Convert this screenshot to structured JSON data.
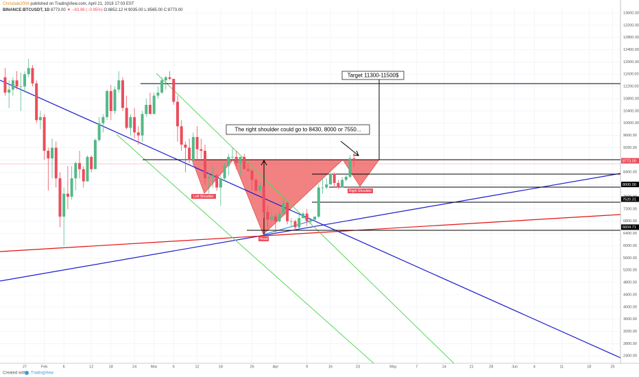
{
  "header": {
    "author": "Chrisdale2006",
    "published": "published on TradingView.com, April 21, 2018 17:03 EST",
    "symbol": "BINANCE:BTCUSDT, 1D",
    "last": "8773.00",
    "change": "▼ −83.98 (−0.95%)",
    "ohlc": "O:8852.12 H:9035.00 L:8565.00 C:8773.00"
  },
  "footer": {
    "created": "Created with",
    "brand": "TradingView"
  },
  "chart_data": {
    "type": "candlestick",
    "up_color": "#53b987",
    "down_color": "#eb4d5c",
    "grid": true,
    "x": [
      -5,
      -4,
      -3,
      -2,
      -1,
      0,
      1,
      2,
      3,
      4,
      5,
      6,
      7,
      8,
      9,
      10,
      11,
      12,
      13,
      14,
      15,
      16,
      17,
      18,
      19,
      20,
      21,
      22,
      23,
      24,
      25,
      26,
      27,
      28,
      29,
      30,
      31,
      32,
      33,
      34,
      35,
      36,
      37,
      38,
      39,
      40,
      41,
      42,
      43,
      44,
      45,
      46,
      47,
      48,
      49,
      50,
      51,
      52,
      53,
      54,
      55,
      56,
      57,
      58,
      59,
      60,
      61,
      62,
      63,
      64,
      65,
      66,
      67,
      68,
      69,
      70,
      71,
      72,
      73,
      74,
      75,
      76,
      77,
      78,
      79,
      80,
      81,
      82,
      83,
      84
    ],
    "ohlc": [
      [
        11500,
        11800,
        10900,
        11000
      ],
      [
        11000,
        11400,
        10500,
        11100
      ],
      [
        11100,
        11500,
        10900,
        11400
      ],
      [
        11400,
        11700,
        11100,
        11200
      ],
      [
        11200,
        11650,
        10400,
        11200
      ],
      [
        11200,
        11700,
        11000,
        11600
      ],
      [
        11600,
        12100,
        11500,
        11800
      ],
      [
        11800,
        11900,
        11200,
        11300
      ],
      [
        11300,
        11400,
        10000,
        10100
      ],
      [
        10100,
        10400,
        9800,
        10200
      ],
      [
        10200,
        10300,
        8800,
        9100
      ],
      [
        9100,
        9200,
        7800,
        8850
      ],
      [
        8850,
        9500,
        8200,
        9200
      ],
      [
        9200,
        9400,
        7900,
        8200
      ],
      [
        8200,
        8400,
        6600,
        6950
      ],
      [
        6950,
        7900,
        6000,
        7700
      ],
      [
        7700,
        8600,
        7200,
        7600
      ],
      [
        7600,
        8600,
        7500,
        8200
      ],
      [
        8200,
        8750,
        7800,
        8700
      ],
      [
        8700,
        9100,
        8200,
        8500
      ],
      [
        8500,
        8600,
        7900,
        8100
      ],
      [
        8100,
        8950,
        8100,
        8900
      ],
      [
        8900,
        8950,
        8400,
        8500
      ],
      [
        8500,
        9500,
        8500,
        9450
      ],
      [
        9450,
        10200,
        9400,
        10000
      ],
      [
        10000,
        10300,
        9700,
        10200
      ],
      [
        10200,
        11100,
        10100,
        11050
      ],
      [
        11050,
        11250,
        10100,
        10400
      ],
      [
        10400,
        11200,
        10300,
        11100
      ],
      [
        11100,
        11700,
        11000,
        11400
      ],
      [
        11400,
        11500,
        10400,
        10500
      ],
      [
        10500,
        10900,
        9800,
        9850
      ],
      [
        9850,
        10300,
        9600,
        10200
      ],
      [
        10200,
        10500,
        9500,
        9700
      ],
      [
        9700,
        9900,
        9300,
        9600
      ],
      [
        9600,
        10400,
        9400,
        10300
      ],
      [
        10300,
        10800,
        10200,
        10600
      ],
      [
        10600,
        11000,
        10300,
        10300
      ],
      [
        10300,
        11000,
        10300,
        10900
      ],
      [
        10900,
        11200,
        10800,
        11000
      ],
      [
        11000,
        11500,
        10950,
        11400
      ],
      [
        11400,
        11550,
        11100,
        11500
      ],
      [
        11500,
        11700,
        11400,
        11450
      ],
      [
        11450,
        11450,
        10600,
        10700
      ],
      [
        10700,
        10900,
        9400,
        9900
      ],
      [
        9900,
        10100,
        9100,
        9300
      ],
      [
        9300,
        9400,
        8400,
        9200
      ],
      [
        9200,
        9500,
        8700,
        8800
      ],
      [
        8800,
        9700,
        8600,
        9550
      ],
      [
        9550,
        9900,
        8800,
        9150
      ],
      [
        9150,
        9500,
        8850,
        9100
      ],
      [
        9100,
        9300,
        8000,
        8200
      ],
      [
        8200,
        8400,
        7700,
        8250
      ],
      [
        8250,
        8600,
        7900,
        8300
      ],
      [
        8300,
        8350,
        7800,
        7900
      ],
      [
        7900,
        8300,
        7300,
        8200
      ],
      [
        8200,
        8700,
        8100,
        8600
      ],
      [
        8600,
        9000,
        8300,
        8900
      ],
      [
        8900,
        9200,
        8800,
        8900
      ],
      [
        8900,
        9100,
        8500,
        8700
      ],
      [
        8700,
        8900,
        8300,
        8900
      ],
      [
        8900,
        9000,
        8500,
        8500
      ],
      [
        8500,
        8700,
        8400,
        8450
      ],
      [
        8450,
        8500,
        7800,
        8150
      ],
      [
        8150,
        8200,
        7750,
        7800
      ],
      [
        7800,
        8100,
        7700,
        7950
      ],
      [
        7950,
        7950,
        6900,
        7100
      ],
      [
        7100,
        7300,
        6550,
        6850
      ],
      [
        6850,
        7200,
        6800,
        6950
      ],
      [
        6950,
        7050,
        6400,
        6800
      ],
      [
        6800,
        7150,
        6750,
        7050
      ],
      [
        7050,
        7550,
        7000,
        7400
      ],
      [
        7400,
        7450,
        6700,
        6800
      ],
      [
        6800,
        6900,
        6600,
        6800
      ],
      [
        6800,
        6850,
        6500,
        6600
      ],
      [
        6600,
        7100,
        6550,
        6900
      ],
      [
        6900,
        7100,
        6900,
        7050
      ],
      [
        7050,
        7200,
        6650,
        6800
      ],
      [
        6800,
        6900,
        6700,
        6850
      ],
      [
        6850,
        6950,
        6800,
        6950
      ],
      [
        6950,
        8000,
        6900,
        7900
      ],
      [
        7900,
        8200,
        7700,
        7900
      ],
      [
        7900,
        8200,
        7850,
        8000
      ],
      [
        8000,
        8400,
        8000,
        8350
      ],
      [
        8350,
        8400,
        7900,
        8050
      ],
      [
        8050,
        8150,
        7850,
        7900
      ],
      [
        7900,
        8250,
        7900,
        8150
      ],
      [
        8150,
        8300,
        8100,
        8250
      ],
      [
        8250,
        8950,
        8200,
        8850
      ],
      [
        8852.12,
        9035,
        8565,
        8773
      ]
    ],
    "xlim": [
      -6.3,
      152
    ],
    "xticks": [
      {
        "value": 0,
        "label": "27"
      },
      {
        "value": 5,
        "label": "Feb"
      },
      {
        "value": 10,
        "label": "6"
      },
      {
        "value": 17,
        "label": "12"
      },
      {
        "value": 22,
        "label": "18"
      },
      {
        "value": 28,
        "label": "24"
      },
      {
        "value": 33,
        "label": "Mar"
      },
      {
        "value": 38,
        "label": "6"
      },
      {
        "value": 44,
        "label": "12"
      },
      {
        "value": 50,
        "label": "18"
      },
      {
        "value": 58,
        "label": "26"
      },
      {
        "value": 64,
        "label": "Apr"
      },
      {
        "value": 72,
        "label": "9"
      },
      {
        "value": 78,
        "label": "16"
      },
      {
        "value": 85,
        "label": "23"
      },
      {
        "value": 94,
        "label": "May"
      },
      {
        "value": 100,
        "label": "7"
      },
      {
        "value": 107,
        "label": "14"
      },
      {
        "value": 114,
        "label": "21"
      },
      {
        "value": 119,
        "label": "28"
      },
      {
        "value": 125,
        "label": "Jun"
      },
      {
        "value": 130,
        "label": "4"
      },
      {
        "value": 137,
        "label": "11"
      },
      {
        "value": 144,
        "label": "18"
      },
      {
        "value": 150,
        "label": "25"
      }
    ],
    "ylim": [
      2160,
      13800
    ],
    "yticks": [
      {
        "value": 2400,
        "label": "2400.00"
      },
      {
        "value": 2800,
        "label": "2800.00"
      },
      {
        "value": 3200,
        "label": "3200.00"
      },
      {
        "value": 3600,
        "label": "3600.00"
      },
      {
        "value": 4000,
        "label": "4000.00"
      },
      {
        "value": 4400,
        "label": "4400.00"
      },
      {
        "value": 4800,
        "label": "4800.00"
      },
      {
        "value": 5200,
        "label": "5200.00"
      },
      {
        "value": 5600,
        "label": "5600.00"
      },
      {
        "value": 6000,
        "label": "6000.00"
      },
      {
        "value": 6400,
        "label": "6400.00"
      },
      {
        "value": 6800,
        "label": "6800.00"
      },
      {
        "value": 7200,
        "label": "7200.00"
      },
      {
        "value": 7600,
        "label": "7600.00"
      },
      {
        "value": 8000,
        "label": "8000.00"
      },
      {
        "value": 8400,
        "label": "8400.00"
      },
      {
        "value": 8800,
        "label": "8800.00"
      },
      {
        "value": 9200,
        "label": "9200.00"
      },
      {
        "value": 9600,
        "label": "9600.00"
      },
      {
        "value": 10000,
        "label": "10000.00"
      },
      {
        "value": 10400,
        "label": "10400.00"
      },
      {
        "value": 10800,
        "label": "10800.00"
      },
      {
        "value": 11200,
        "label": "11200.00"
      },
      {
        "value": 11600,
        "label": "11600.00"
      },
      {
        "value": 12000,
        "label": "12000.00"
      },
      {
        "value": 12400,
        "label": "12400.00"
      },
      {
        "value": 12800,
        "label": "12800.00"
      },
      {
        "value": 13200,
        "label": "13200.00"
      },
      {
        "value": 13600,
        "label": "13600.00"
      }
    ],
    "price_badges": [
      {
        "value": 8773,
        "label": "8773.00",
        "color": "#eb4d5c"
      },
      {
        "value": 8000,
        "label": "8000.00",
        "color": "#000000"
      },
      {
        "value": 7520.31,
        "label": "7520.31",
        "color": "#000000"
      },
      {
        "value": 6604.71,
        "label": "6604.71",
        "color": "#000000"
      }
    ],
    "annotations": {
      "target": "Target 11300-11500$",
      "callout": "The right shoulder could go to 8430, 8000 or 7550...",
      "left_shoulder": "Left Shoulder",
      "head": "Head",
      "right_shoulder": "Right Shoulder"
    }
  }
}
